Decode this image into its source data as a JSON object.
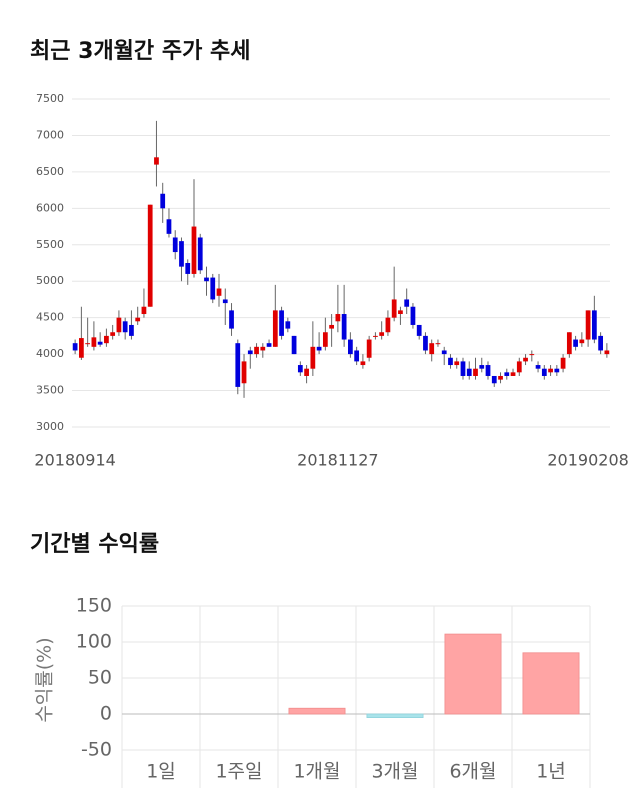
{
  "chart_data": [
    {
      "type": "candlestick",
      "title": "최근 3개월간 주가 추세",
      "categories": [
        "20180914",
        null,
        null,
        null,
        null,
        null,
        null,
        null,
        null,
        null,
        null,
        null,
        null,
        null,
        null,
        null,
        null,
        null,
        null,
        null,
        null,
        null,
        null,
        null,
        null,
        null,
        null,
        null,
        null,
        null,
        null,
        null,
        null,
        null,
        null,
        null,
        null,
        null,
        null,
        null,
        null,
        null,
        "20181127",
        null,
        null,
        null,
        null,
        null,
        null,
        null,
        null,
        null,
        null,
        null,
        null,
        null,
        null,
        null,
        null,
        null,
        null,
        null,
        null,
        null,
        null,
        null,
        null,
        null,
        null,
        null,
        null,
        null,
        null,
        null,
        null,
        null,
        null,
        null,
        null,
        null,
        null,
        null,
        "20190208",
        null,
        null,
        null
      ],
      "open": [
        4150,
        3950,
        4150,
        4100,
        4170,
        4150,
        4250,
        4300,
        4450,
        4400,
        4450,
        4550,
        4650,
        6600,
        6200,
        5850,
        5600,
        5550,
        5250,
        5100,
        5600,
        5050,
        5050,
        4800,
        4750,
        4600,
        4150,
        3600,
        4050,
        4000,
        4050,
        4150,
        4100,
        4600,
        4450,
        4250,
        3850,
        3700,
        3800,
        4100,
        4100,
        4350,
        4450,
        4550,
        4200,
        4050,
        3850,
        3950,
        4250,
        4250,
        4300,
        4500,
        4550,
        4750,
        4650,
        4400,
        4250,
        4000,
        4150,
        4050,
        3950,
        3850,
        3900,
        3800,
        3700,
        3850,
        3850,
        3700,
        3650,
        3750,
        3700,
        3750,
        3900,
        4000,
        3850,
        3800,
        3750,
        3800,
        3800,
        4000,
        4200,
        4150,
        4200,
        4600,
        4250,
        4000
      ],
      "high": [
        4200,
        4650,
        4500,
        4450,
        4300,
        4350,
        4400,
        4600,
        4500,
        4600,
        4650,
        4900,
        6050,
        7200,
        6350,
        6000,
        5700,
        5600,
        5300,
        6400,
        5650,
        5200,
        5100,
        5100,
        4900,
        4700,
        4200,
        4000,
        4100,
        4150,
        4150,
        4200,
        4950,
        4650,
        4500,
        4250,
        3900,
        3850,
        4450,
        4300,
        4500,
        4550,
        4950,
        4950,
        4300,
        4100,
        4000,
        4250,
        4300,
        4450,
        4600,
        5200,
        4650,
        4900,
        4700,
        4400,
        4300,
        4200,
        4200,
        4100,
        4000,
        3950,
        3950,
        3900,
        3950,
        3950,
        3900,
        3700,
        3750,
        3800,
        3800,
        3950,
        4000,
        4050,
        3900,
        3850,
        3850,
        3850,
        4000,
        4300,
        4250,
        4300,
        4600,
        4800,
        4300,
        4150
      ],
      "low": [
        4000,
        3920,
        4100,
        4050,
        4100,
        4100,
        4200,
        4250,
        4200,
        4200,
        4400,
        4500,
        4650,
        6300,
        5800,
        5600,
        5300,
        5000,
        4950,
        5050,
        5100,
        4800,
        4700,
        4650,
        4400,
        4250,
        3450,
        3400,
        3800,
        3950,
        3950,
        4100,
        4100,
        4200,
        4300,
        4000,
        3700,
        3600,
        3700,
        4000,
        4050,
        4100,
        4300,
        4100,
        3950,
        3850,
        3800,
        3900,
        4200,
        4200,
        4250,
        4450,
        4400,
        4550,
        4350,
        4200,
        4000,
        3900,
        4100,
        3850,
        3800,
        3800,
        3650,
        3650,
        3650,
        3750,
        3650,
        3550,
        3600,
        3650,
        3700,
        3700,
        3850,
        3900,
        3750,
        3650,
        3700,
        3700,
        3750,
        3950,
        4050,
        4100,
        4100,
        4150,
        4000,
        3950
      ],
      "close": [
        4050,
        4220,
        4150,
        4230,
        4130,
        4250,
        4300,
        4500,
        4300,
        4250,
        4500,
        4650,
        6050,
        6700,
        6000,
        5650,
        5400,
        5200,
        5100,
        5750,
        5150,
        5000,
        4750,
        4900,
        4700,
        4350,
        3550,
        3900,
        4000,
        4100,
        4100,
        4100,
        4600,
        4250,
        4350,
        4000,
        3750,
        3800,
        4100,
        4050,
        4300,
        4400,
        4550,
        4200,
        4000,
        3900,
        3900,
        4200,
        4250,
        4300,
        4500,
        4750,
        4600,
        4650,
        4400,
        4250,
        4050,
        4150,
        4150,
        4000,
        3850,
        3900,
        3700,
        3700,
        3800,
        3800,
        3700,
        3600,
        3700,
        3700,
        3750,
        3900,
        3950,
        4000,
        3800,
        3700,
        3800,
        3750,
        3950,
        4300,
        4100,
        4200,
        4600,
        4200,
        4050,
        4050
      ],
      "up_color": "#e00000",
      "down_color": "#0000dd",
      "ylim": [
        3000,
        7500
      ],
      "yticks": [
        3000,
        3500,
        4000,
        4500,
        5000,
        5500,
        6000,
        6500,
        7000,
        7500
      ],
      "grid": true
    },
    {
      "type": "bar",
      "title": "기간별 수익률",
      "ylabel": "수익률(%)",
      "categories": [
        "1일",
        "1주일",
        "1개월",
        "3개월",
        "6개월",
        "1년"
      ],
      "values": [
        0,
        0,
        8,
        -5,
        111,
        85
      ],
      "color_positive": "#ffa4a4",
      "color_negative": "#a9e3ea",
      "ylim": [
        -50,
        150
      ],
      "yticks": [
        -50,
        0,
        50,
        100,
        150
      ],
      "grid": true
    }
  ]
}
